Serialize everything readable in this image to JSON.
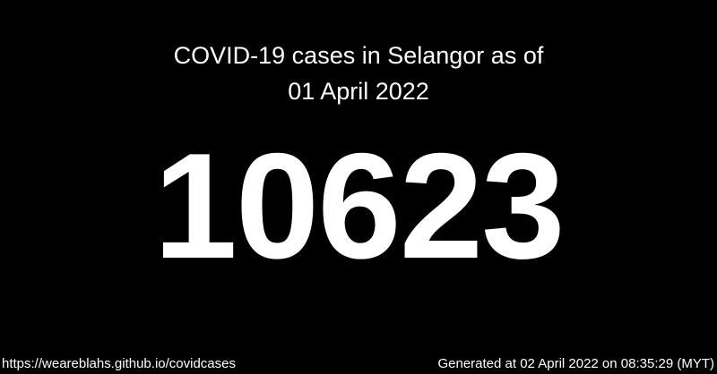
{
  "title": {
    "line1": "COVID-19 cases in Selangor as of",
    "line2": "01 April 2022"
  },
  "case_count": "10623",
  "footer": {
    "url": "https://weareblahs.github.io/covidcases",
    "generated": "Generated at 02 April 2022 on 08:35:29 (MYT)"
  }
}
